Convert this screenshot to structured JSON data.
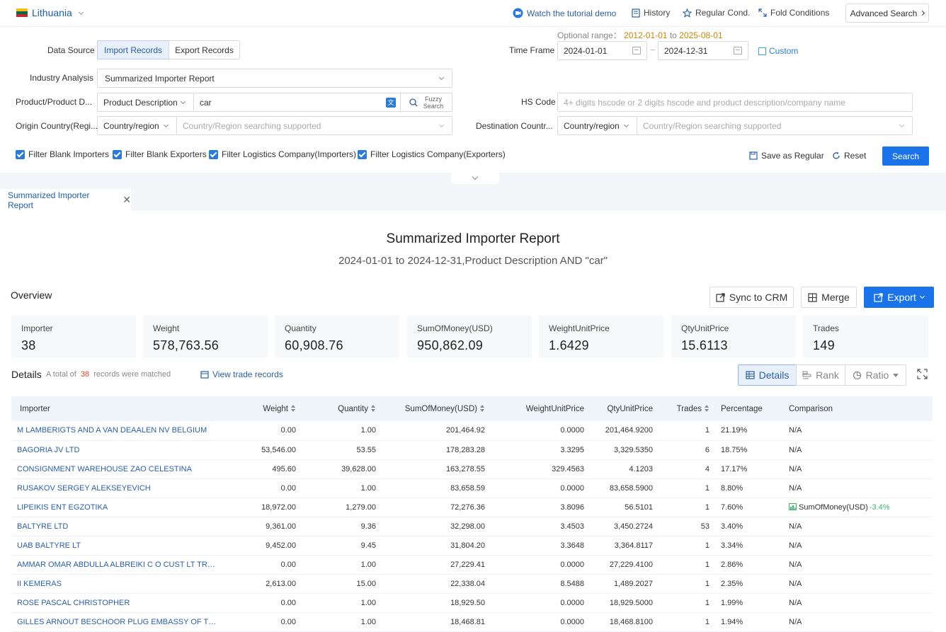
{
  "topbar": {
    "country": "Lithuania",
    "flag_colors": [
      "#FDB913",
      "#006A44",
      "#C1272D"
    ],
    "tutorial": "Watch the tutorial demo",
    "history": "History",
    "regular_cond": "Regular Cond.",
    "fold_conditions": "Fold Conditions",
    "advanced_search": "Advanced Search"
  },
  "filters": {
    "optional_range_label": "Optional range：",
    "optional_range_start": "2012-01-01",
    "optional_range_to": "to",
    "optional_range_end": "2025-08-01",
    "data_source_label": "Data Source",
    "data_source_options": [
      "Import Records",
      "Export Records"
    ],
    "time_frame_label": "Time Frame",
    "date_start": "2024-01-01",
    "date_end": "2024-12-31",
    "custom": "Custom",
    "industry_label": "Industry Analysis",
    "industry_value": "Summarized Importer Report",
    "product_label": "Product/Product D...",
    "product_type": "Product Description",
    "product_value": "car",
    "fuzzy_search": "Fuzzy Search",
    "hs_code_label": "HS Code",
    "hs_code_placeholder": "4+ digits hscode or 2 digits hscode and product description/company name",
    "origin_label": "Origin Country(Regi...",
    "origin_type": "Country/region",
    "origin_placeholder": "Country/Region searching supported",
    "destination_label": "Destination Countr...",
    "destination_type": "Country/region",
    "destination_placeholder": "Country/Region searching supported",
    "checkboxes": [
      "Filter Blank Importers",
      "Filter Blank Exporters",
      "Filter Logistics Company(Importers)",
      "Filter Logistics Company(Exporters)"
    ],
    "save_regular": "Save as Regular",
    "reset": "Reset",
    "search": "Search"
  },
  "tab": {
    "label": "Summarized Importer Report"
  },
  "report": {
    "title": "Summarized Importer Report",
    "subtitle": "2024-01-01 to 2024-12-31,Product Description AND \"car\""
  },
  "overview": {
    "heading": "Overview",
    "sync_crm": "Sync to CRM",
    "merge": "Merge",
    "export": "Export",
    "stats": [
      {
        "label": "Importer",
        "value": "38"
      },
      {
        "label": "Weight",
        "value": "578,763.56"
      },
      {
        "label": "Quantity",
        "value": "60,908.76"
      },
      {
        "label": "SumOfMoney(USD)",
        "value": "950,862.09"
      },
      {
        "label": "WeightUnitPrice",
        "value": "1.6429"
      },
      {
        "label": "QtyUnitPrice",
        "value": "15.6113"
      },
      {
        "label": "Trades",
        "value": "149"
      }
    ]
  },
  "details": {
    "heading": "Details",
    "total_prefix": "A total of",
    "total_count": "38",
    "total_suffix": "records were matched",
    "view_trade": "View trade records",
    "view_details": "Details",
    "view_rank": "Rank",
    "view_ratio": "Ratio"
  },
  "table": {
    "headers": [
      "Importer",
      "Weight",
      "Quantity",
      "SumOfMoney(USD)",
      "WeightUnitPrice",
      "QtyUnitPrice",
      "Trades",
      "Percentage",
      "Comparison"
    ],
    "rows": [
      [
        "M LAMBERIGTS AND A VAN DEAALEN NV BELGIUM",
        "0.00",
        "1.00",
        "201,464.92",
        "0.0000",
        "201,464.9200",
        "1",
        "21.19%",
        "N/A",
        ""
      ],
      [
        "BAGORIA JV LTD",
        "53,546.00",
        "53.55",
        "178,283.28",
        "3.3295",
        "3,329.5350",
        "6",
        "18.75%",
        "N/A",
        ""
      ],
      [
        "CONSIGNMENT WAREHOUSE ZAO CELESTINA",
        "495.60",
        "39,628.00",
        "163,278.55",
        "329.4563",
        "4.1203",
        "4",
        "17.17%",
        "N/A",
        ""
      ],
      [
        "RUSAKOV SERGEY ALEKSEYEVICH",
        "0.00",
        "1.00",
        "83,658.59",
        "0.0000",
        "83,658.5900",
        "1",
        "8.80%",
        "N/A",
        ""
      ],
      [
        "LIPEIKIS ENT EGZOTIKA",
        "18,972.00",
        "1,279.00",
        "72,276.36",
        "3.8096",
        "56.5101",
        "1",
        "7.60%",
        "SumOfMoney(USD)",
        "-3.4%"
      ],
      [
        "BALTYRE LTD",
        "9,361.00",
        "9.36",
        "32,298.00",
        "3.4503",
        "3,450.2724",
        "53",
        "3.40%",
        "N/A",
        ""
      ],
      [
        "UAB BALTYRE LT",
        "9,452.00",
        "9.45",
        "31,804.20",
        "3.3648",
        "3,364.8117",
        "1",
        "3.34%",
        "N/A",
        ""
      ],
      [
        "AMMAR OMAR ABDULLA ALBREIKI C O CUST LT TRANS...",
        "0.00",
        "1.00",
        "27,229.41",
        "0.0000",
        "27,229.4100",
        "1",
        "2.86%",
        "N/A",
        ""
      ],
      [
        "II KEMERAS",
        "2,613.00",
        "15.00",
        "22,338.04",
        "8.5488",
        "1,489.2027",
        "1",
        "2.35%",
        "N/A",
        ""
      ],
      [
        "ROSE PASCAL CHRISTOPHER",
        "0.00",
        "1.00",
        "18,929.50",
        "0.0000",
        "18,929.5000",
        "1",
        "1.99%",
        "N/A",
        ""
      ],
      [
        "GILLES ARNOUT BESCHOOR PLUG EMBASSY OF THE KI...",
        "0.00",
        "1.00",
        "18,468.81",
        "0.0000",
        "18,468.8100",
        "1",
        "1.94%",
        "N/A",
        ""
      ]
    ]
  }
}
